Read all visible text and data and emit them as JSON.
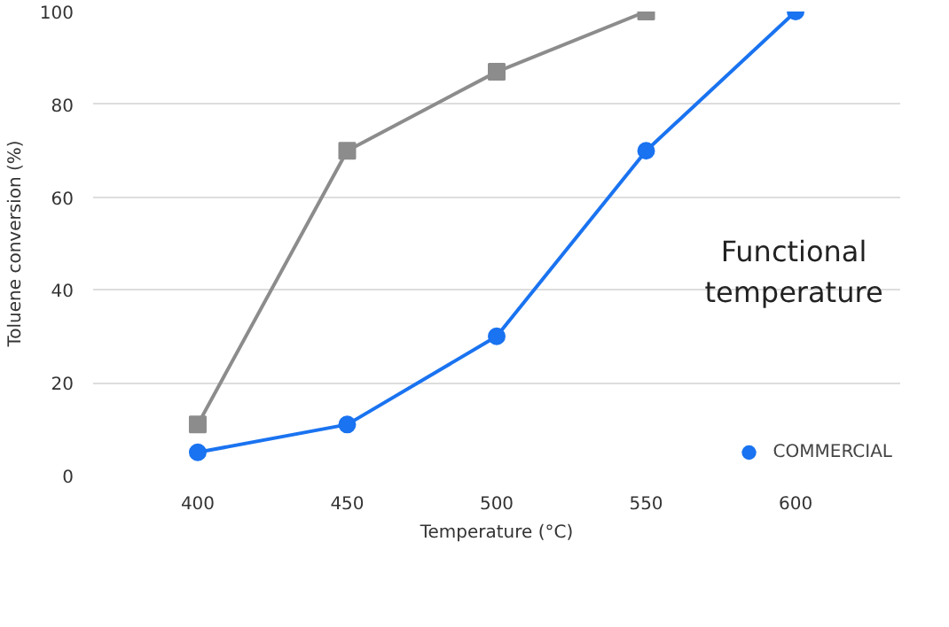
{
  "chart_data": {
    "type": "line",
    "xlabel": "Temperature (°C)",
    "ylabel": "Toluene conversion (%)",
    "x": [
      400,
      450,
      500,
      550,
      600
    ],
    "series": [
      {
        "color": "#8c8c8c",
        "marker": "square",
        "values": [
          11,
          70,
          87,
          100,
          null
        ]
      },
      {
        "name": "COMMERCIAL",
        "color": "#1a73f0",
        "marker": "circle",
        "values": [
          5,
          11,
          30,
          70,
          100
        ]
      }
    ],
    "xlim": [
      365,
      635
    ],
    "ylim": [
      0,
      100
    ],
    "xticks": [
      400,
      450,
      500,
      550,
      600
    ],
    "yticks": [
      0,
      20,
      40,
      60,
      80,
      100
    ],
    "grid": "y",
    "legend": "bottom right",
    "line_style": "solid",
    "annotations": [
      "Functional temperature"
    ]
  }
}
